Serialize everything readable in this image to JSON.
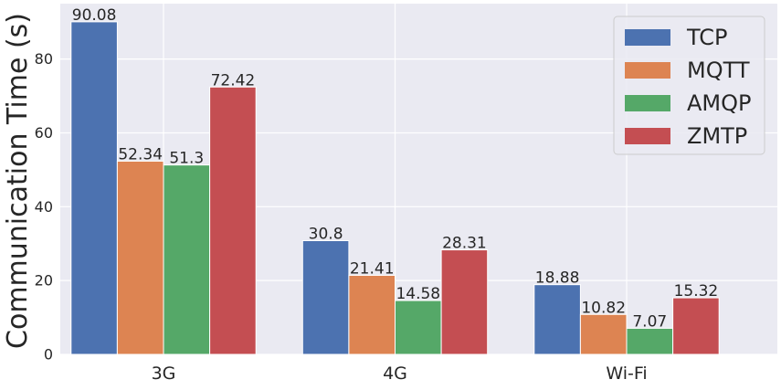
{
  "chart_data": {
    "type": "bar",
    "categories": [
      "3G",
      "4G",
      "Wi-Fi"
    ],
    "series": [
      {
        "name": "TCP",
        "color": "#4c72b0",
        "values": [
          90.08,
          30.8,
          18.88
        ],
        "labels": [
          "90.08",
          "30.8",
          "18.88"
        ]
      },
      {
        "name": "MQTT",
        "color": "#dd8452",
        "values": [
          52.34,
          21.41,
          10.82
        ],
        "labels": [
          "52.34",
          "21.41",
          "10.82"
        ]
      },
      {
        "name": "AMQP",
        "color": "#55a868",
        "values": [
          51.3,
          14.58,
          7.07
        ],
        "labels": [
          "51.3",
          "14.58",
          "7.07"
        ]
      },
      {
        "name": "ZMTP",
        "color": "#c44e52",
        "values": [
          72.42,
          28.31,
          15.32
        ],
        "labels": [
          "72.42",
          "28.31",
          "15.32"
        ]
      }
    ],
    "ylabel": "Communication Time (s)",
    "xlabel": "",
    "ylim": [
      0,
      95
    ],
    "yticks": [
      0,
      20,
      40,
      60,
      80
    ],
    "grid": true,
    "legend_position": "top-right",
    "background_color": "#eaeaf2"
  }
}
